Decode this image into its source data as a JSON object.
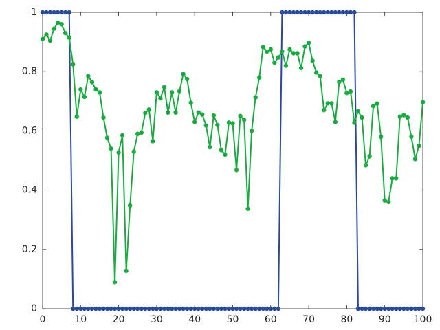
{
  "chart_data": {
    "type": "line",
    "x": [
      0,
      1,
      2,
      3,
      4,
      5,
      6,
      7,
      8,
      9,
      10,
      11,
      12,
      13,
      14,
      15,
      16,
      17,
      18,
      19,
      20,
      21,
      22,
      23,
      24,
      25,
      26,
      27,
      28,
      29,
      30,
      31,
      32,
      33,
      34,
      35,
      36,
      37,
      38,
      39,
      40,
      41,
      42,
      43,
      44,
      45,
      46,
      47,
      48,
      49,
      50,
      51,
      52,
      53,
      54,
      55,
      56,
      57,
      58,
      59,
      60,
      61,
      62,
      63,
      64,
      65,
      66,
      67,
      68,
      69,
      70,
      71,
      72,
      73,
      74,
      75,
      76,
      77,
      78,
      79,
      80,
      81,
      82,
      83,
      84,
      85,
      86,
      87,
      88,
      89,
      90,
      91,
      92,
      93,
      94,
      95,
      96,
      97,
      98,
      99,
      100
    ],
    "series": [
      {
        "color": "#2a4b9b",
        "values": [
          1,
          1,
          1,
          1,
          1,
          1,
          1,
          1,
          0,
          0,
          0,
          0,
          0,
          0,
          0,
          0,
          0,
          0,
          0,
          0,
          0,
          0,
          0,
          0,
          0,
          0,
          0,
          0,
          0,
          0,
          0,
          0,
          0,
          0,
          0,
          0,
          0,
          0,
          0,
          0,
          0,
          0,
          0,
          0,
          0,
          0,
          0,
          0,
          0,
          0,
          0,
          0,
          0,
          0,
          0,
          0,
          0,
          0,
          0,
          0,
          0,
          0,
          0,
          1,
          1,
          1,
          1,
          1,
          1,
          1,
          1,
          1,
          1,
          1,
          1,
          1,
          1,
          1,
          1,
          1,
          1,
          1,
          1,
          0,
          0,
          0,
          0,
          0,
          0,
          0,
          0,
          0,
          0,
          0,
          0,
          0,
          0,
          0,
          0,
          0,
          0
        ]
      },
      {
        "color": "#1aab40",
        "values": [
          0.91,
          0.925,
          0.905,
          0.945,
          0.965,
          0.96,
          0.93,
          0.915,
          0.825,
          0.648,
          0.74,
          0.715,
          0.785,
          0.765,
          0.74,
          0.73,
          0.645,
          0.577,
          0.54,
          0.09,
          0.527,
          0.585,
          0.128,
          0.348,
          0.53,
          0.59,
          0.594,
          0.66,
          0.672,
          0.565,
          0.73,
          0.71,
          0.748,
          0.662,
          0.73,
          0.662,
          0.734,
          0.792,
          0.775,
          0.695,
          0.63,
          0.662,
          0.655,
          0.618,
          0.545,
          0.652,
          0.62,
          0.535,
          0.52,
          0.628,
          0.625,
          0.468,
          0.65,
          0.637,
          0.337,
          0.6,
          0.713,
          0.78,
          0.883,
          0.868,
          0.875,
          0.83,
          0.848,
          0.868,
          0.82,
          0.875,
          0.862,
          0.862,
          0.812,
          0.885,
          0.897,
          0.837,
          0.797,
          0.785,
          0.67,
          0.693,
          0.693,
          0.63,
          0.765,
          0.773,
          0.728,
          0.733,
          0.628,
          0.666,
          0.645,
          0.484,
          0.514,
          0.684,
          0.692,
          0.58,
          0.365,
          0.36,
          0.44,
          0.44,
          0.648,
          0.653,
          0.645,
          0.58,
          0.505,
          0.55,
          0.697
        ]
      }
    ],
    "xlim": [
      0,
      100
    ],
    "xticks": [
      0,
      10,
      20,
      30,
      40,
      50,
      60,
      70,
      80,
      90,
      100
    ],
    "ylim": [
      0,
      1
    ],
    "yticks": [
      0,
      0.2,
      0.4,
      0.6,
      0.8,
      1
    ]
  }
}
